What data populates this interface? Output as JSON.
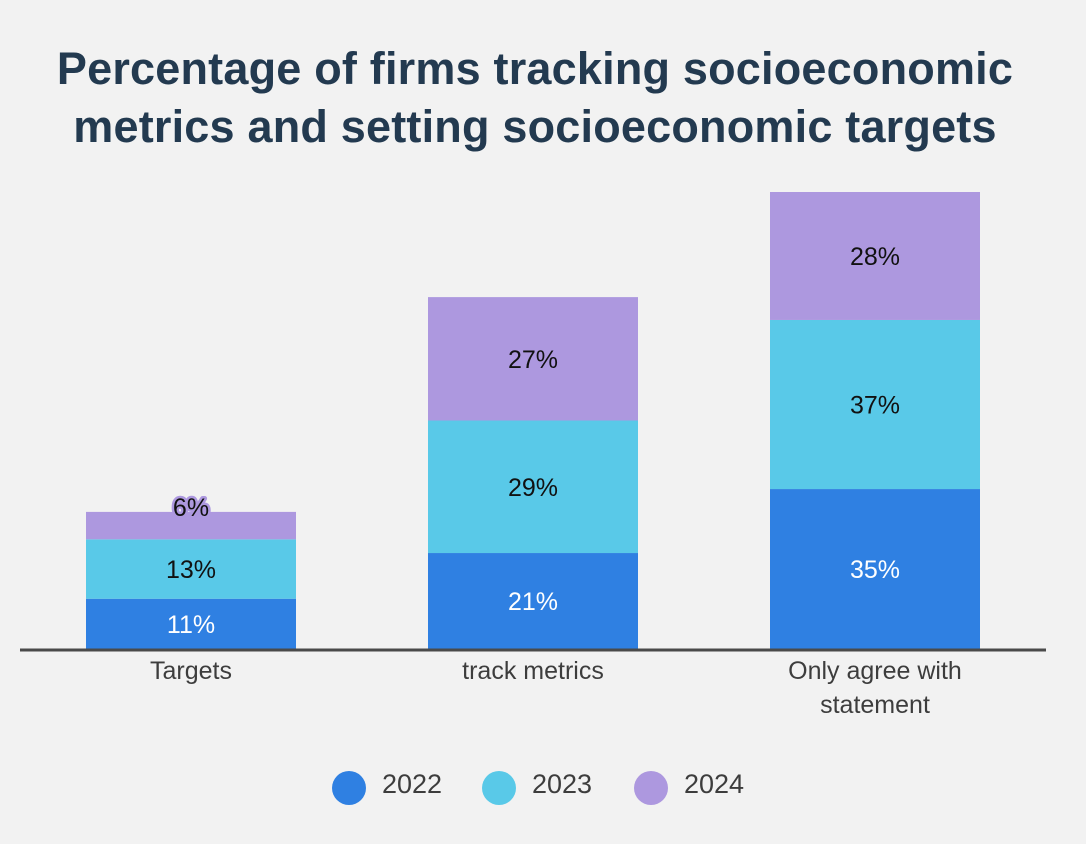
{
  "chart_data": {
    "type": "bar",
    "stacked": true,
    "title": "Percentage of firms tracking socioeconomic metrics and setting socioeconomic targets",
    "categories": [
      [
        "Targets"
      ],
      [
        "track metrics"
      ],
      [
        "Only agree with",
        "statement"
      ]
    ],
    "series": [
      {
        "name": "2022",
        "color": "#2f80e2",
        "label_color": "#ffffff",
        "values": [
          11,
          21,
          35
        ],
        "labels": [
          "11%",
          "21%",
          "35%"
        ]
      },
      {
        "name": "2023",
        "color": "#59c9e8",
        "label_color": "#111111",
        "values": [
          13,
          29,
          37
        ],
        "labels": [
          "13%",
          "29%",
          "37%"
        ]
      },
      {
        "name": "2024",
        "color": "#ad98df",
        "label_color": "#111111",
        "values": [
          6,
          27,
          28
        ],
        "labels": [
          "6%",
          "27%",
          "28%"
        ]
      }
    ],
    "ylim": [
      0,
      100
    ],
    "grid": false,
    "legend_position": "bottom",
    "xlabel": "",
    "ylabel": ""
  }
}
